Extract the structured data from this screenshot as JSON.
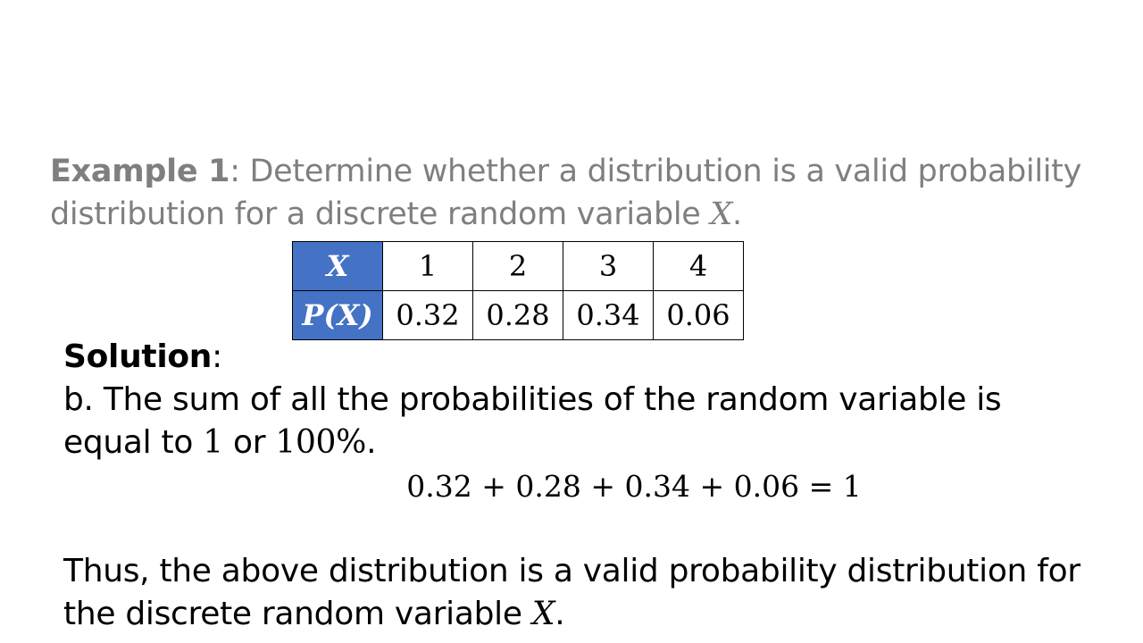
{
  "example": {
    "label": "Example 1",
    "colon": ":",
    "text": " Determine whether a distribution is a valid probability distribution for a discrete random variable ",
    "variable": "X",
    "end": "."
  },
  "table": {
    "header_x": "X",
    "header_px": "P(X)",
    "x_values": [
      "1",
      "2",
      "3",
      "4"
    ],
    "p_values": [
      "0.32",
      "0.28",
      "0.34",
      "0.06"
    ]
  },
  "solution": {
    "label": "Solution",
    "colon": ":",
    "line1": "b. The sum of all the probabilities of the random variable is",
    "line2_pre": "equal to ",
    "line2_one": "1",
    "line2_or": " or ",
    "line2_pct": "100%",
    "line2_end": "."
  },
  "equation": "0.32 + 0.28 + 0.34 + 0.06 = 1",
  "conclusion": {
    "text": "Thus, the above distribution is a valid probability distribution for the discrete random variable ",
    "variable": "X",
    "end": "."
  },
  "colors": {
    "table_header_bg": "#4472c4",
    "example_text": "#7f7f7f",
    "body_text": "#000000"
  }
}
